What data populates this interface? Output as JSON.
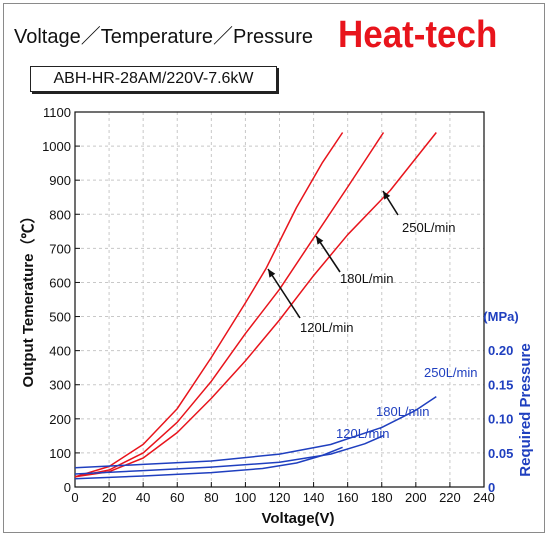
{
  "header": {
    "title": "Voltage／Temperature／Pressure",
    "brand": "Heat-tech",
    "model": "ABH-HR-28AM/220V-7.6kW"
  },
  "chart_data": {
    "type": "line",
    "xlabel": "Voltage(V)",
    "ylabel": "Output Temerature（℃）",
    "y2label": "Required Pressure",
    "y2unit": "(MPa)",
    "xlim": [
      0,
      240
    ],
    "ylim": [
      0,
      1100
    ],
    "y2lim": [
      0,
      0.2
    ],
    "xticks": [
      0,
      20,
      40,
      60,
      80,
      100,
      120,
      140,
      160,
      180,
      200,
      220,
      240
    ],
    "yticks": [
      0,
      100,
      200,
      300,
      400,
      500,
      600,
      700,
      800,
      900,
      1000,
      1100
    ],
    "y2ticks": [
      "0",
      "0.05",
      "0.10",
      "0.15",
      "0.20"
    ],
    "grid": true,
    "temperature_series": [
      {
        "name": "120L/min",
        "x": [
          0,
          20,
          40,
          60,
          80,
          100,
          112,
          130,
          145,
          157
        ],
        "y": [
          30,
          60,
          125,
          230,
          380,
          540,
          640,
          820,
          950,
          1040
        ]
      },
      {
        "name": "180L/min",
        "x": [
          0,
          20,
          40,
          60,
          80,
          100,
          120,
          140,
          160,
          181
        ],
        "y": [
          30,
          50,
          100,
          190,
          310,
          450,
          580,
          730,
          880,
          1040
        ]
      },
      {
        "name": "250L/min",
        "x": [
          0,
          20,
          40,
          60,
          80,
          100,
          120,
          140,
          160,
          185,
          212
        ],
        "y": [
          30,
          45,
          85,
          160,
          260,
          370,
          490,
          620,
          740,
          870,
          1040
        ]
      }
    ],
    "pressure_series": [
      {
        "name": "250L/min",
        "x": [
          0,
          40,
          80,
          120,
          150,
          180,
          200,
          212
        ],
        "y": [
          0.028,
          0.033,
          0.038,
          0.048,
          0.062,
          0.087,
          0.112,
          0.132
        ]
      },
      {
        "name": "180L/min",
        "x": [
          0,
          40,
          80,
          120,
          150,
          170,
          181
        ],
        "y": [
          0.019,
          0.024,
          0.029,
          0.036,
          0.048,
          0.063,
          0.075
        ]
      },
      {
        "name": "120L/min",
        "x": [
          0,
          40,
          80,
          110,
          130,
          145,
          157
        ],
        "y": [
          0.012,
          0.016,
          0.021,
          0.027,
          0.035,
          0.046,
          0.058
        ]
      }
    ],
    "annotations": {
      "temp_250": "250L/min",
      "temp_180": "180L/min",
      "temp_120": "120L/min",
      "pres_250": "250L/min",
      "pres_180": "180L/min",
      "pres_120": "120L/min"
    },
    "colors": {
      "temperature": "#e8141c",
      "pressure": "#1f3fbf",
      "grid": "#c8c8c8",
      "axis": "#111111"
    }
  }
}
